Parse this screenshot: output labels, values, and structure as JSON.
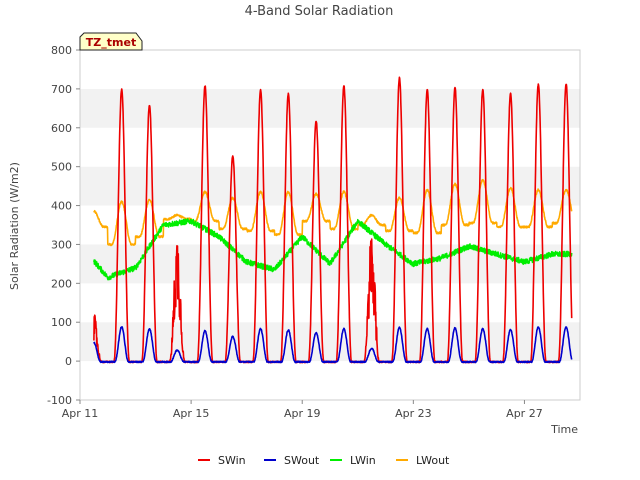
{
  "chart_data": {
    "type": "line",
    "title": "4-Band Solar Radiation",
    "xlabel": "Time",
    "ylabel": "Solar Radiation (W/m2)",
    "ylim": [
      -100,
      800
    ],
    "xlim": [
      0,
      18
    ],
    "yticks": [
      -100,
      0,
      100,
      200,
      300,
      400,
      500,
      600,
      700,
      800
    ],
    "xticks": [
      {
        "value": 0,
        "label": "Apr 11"
      },
      {
        "value": 4,
        "label": "Apr 15"
      },
      {
        "value": 8,
        "label": "Apr 19"
      },
      {
        "value": 12,
        "label": "Apr 23"
      },
      {
        "value": 16,
        "label": "Apr 27"
      }
    ],
    "grid": "horizontal bands",
    "legend_position": "bottom-center",
    "annotation": "TZ_tmet",
    "start_day": 0.5,
    "days": 17.2,
    "series": [
      {
        "name": "SWin",
        "color": "#ee0000",
        "daily_peak": [
          90,
          700,
          660,
          240,
          710,
          530,
          700,
          690,
          620,
          710,
          250,
          730,
          700,
          705,
          700,
          690,
          715
        ]
      },
      {
        "name": "SWout",
        "color": "#0000cc",
        "daily_peak": [
          50,
          90,
          85,
          30,
          80,
          65,
          85,
          82,
          75,
          85,
          35,
          88,
          85,
          87,
          85,
          83,
          90
        ]
      },
      {
        "name": "LWin",
        "color": "#00ee00",
        "daily_level": [
          300,
          215,
          240,
          350,
          360,
          320,
          255,
          235,
          320,
          250,
          360,
          300,
          250,
          265,
          295,
          275,
          255,
          275
        ]
      },
      {
        "name": "LWout",
        "color": "#ffaa00",
        "daily_base": [
          345,
          300,
          320,
          365,
          360,
          340,
          335,
          325,
          360,
          340,
          350,
          335,
          330,
          350,
          355,
          345,
          345,
          355
        ],
        "daily_peak": [
          385,
          410,
          415,
          375,
          435,
          420,
          435,
          435,
          430,
          435,
          375,
          420,
          440,
          455,
          465,
          445,
          440
        ]
      }
    ]
  }
}
